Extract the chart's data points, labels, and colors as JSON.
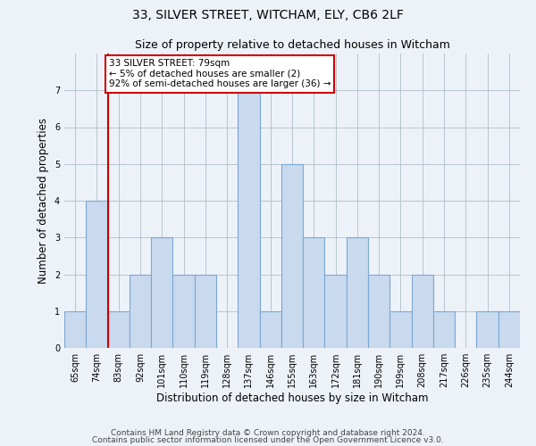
{
  "title": "33, SILVER STREET, WITCHAM, ELY, CB6 2LF",
  "subtitle": "Size of property relative to detached houses in Witcham",
  "xlabel": "Distribution of detached houses by size in Witcham",
  "ylabel": "Number of detached properties",
  "categories": [
    "65sqm",
    "74sqm",
    "83sqm",
    "92sqm",
    "101sqm",
    "110sqm",
    "119sqm",
    "128sqm",
    "137sqm",
    "146sqm",
    "155sqm",
    "163sqm",
    "172sqm",
    "181sqm",
    "190sqm",
    "199sqm",
    "208sqm",
    "217sqm",
    "226sqm",
    "235sqm",
    "244sqm"
  ],
  "values": [
    1,
    4,
    1,
    2,
    3,
    2,
    2,
    0,
    7,
    1,
    5,
    3,
    2,
    3,
    2,
    1,
    2,
    1,
    0,
    1,
    1
  ],
  "bar_color": "#c9d9ee",
  "bar_edge_color": "#7aa8d4",
  "annotation_text": "33 SILVER STREET: 79sqm\n← 5% of detached houses are smaller (2)\n92% of semi-detached houses are larger (36) →",
  "annotation_box_color": "#ffffff",
  "annotation_box_edge_color": "#cc0000",
  "vline_color": "#cc0000",
  "ylim": [
    0,
    8
  ],
  "yticks": [
    0,
    1,
    2,
    3,
    4,
    5,
    6,
    7,
    8
  ],
  "grid_color": "#b0bec5",
  "background_color": "#edf2f9",
  "axes_background_color": "#edf2f9",
  "footer_line1": "Contains HM Land Registry data © Crown copyright and database right 2024.",
  "footer_line2": "Contains public sector information licensed under the Open Government Licence v3.0.",
  "title_fontsize": 10,
  "subtitle_fontsize": 9,
  "xlabel_fontsize": 8.5,
  "ylabel_fontsize": 8.5,
  "tick_fontsize": 7,
  "footer_fontsize": 6.5,
  "annotation_fontsize": 7.5
}
